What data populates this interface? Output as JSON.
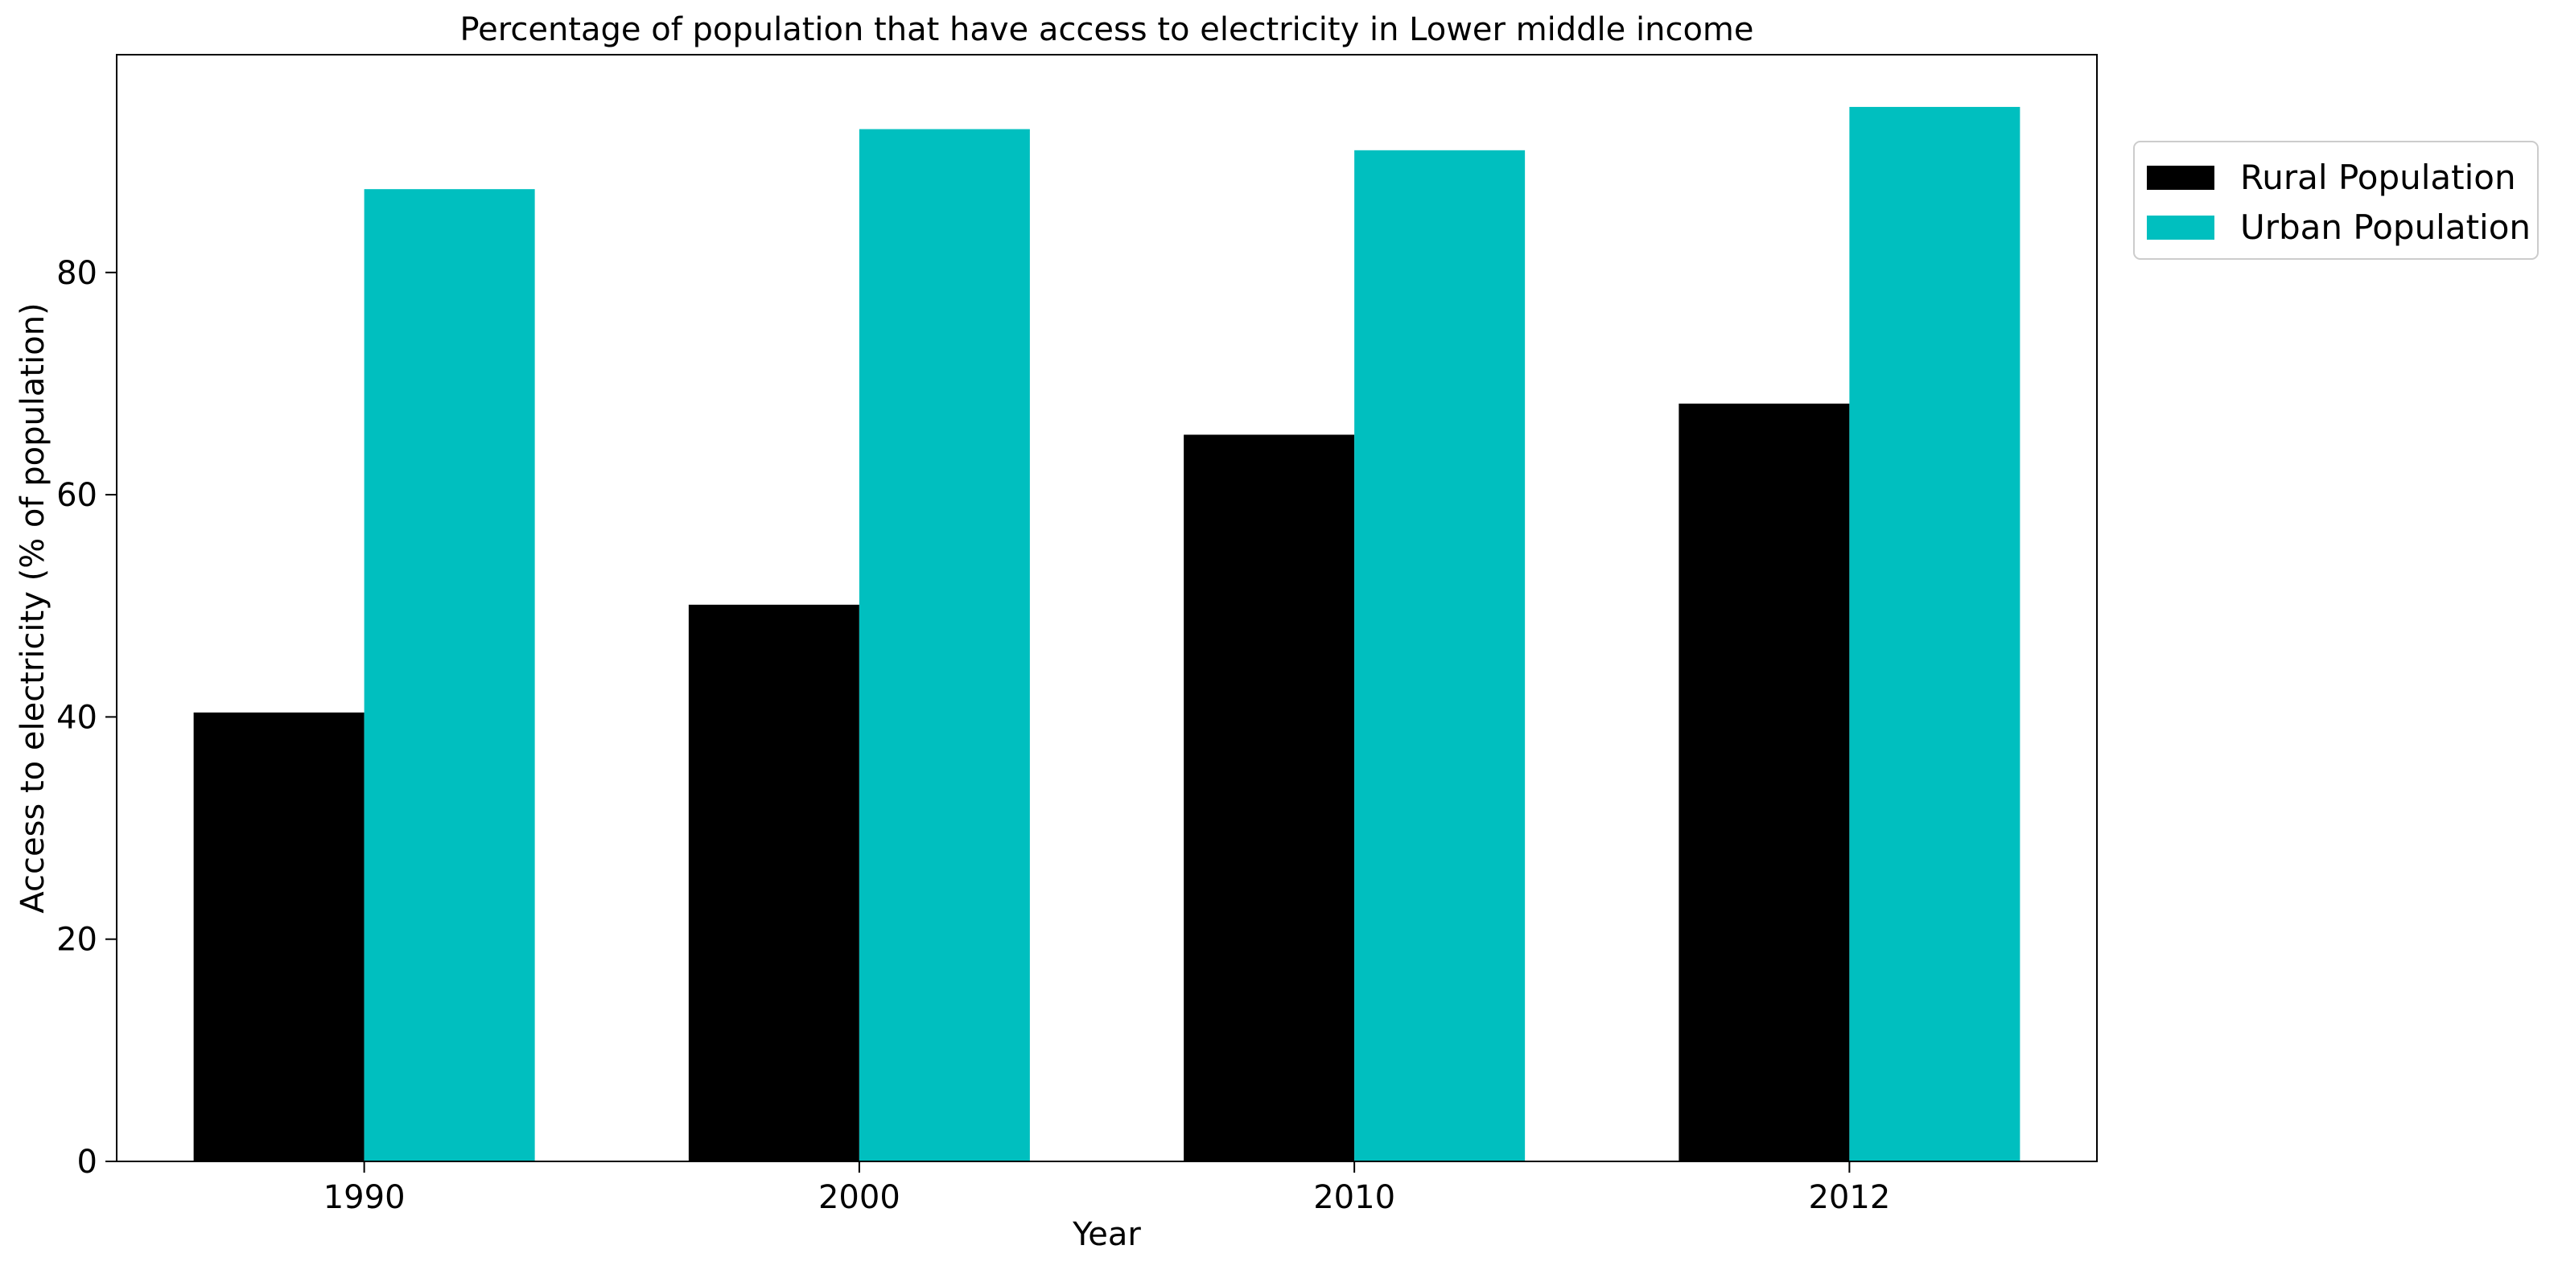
{
  "chart_data": {
    "type": "bar",
    "title": "Percentage of population that have access to electricity in Lower middle income",
    "xlabel": "Year",
    "ylabel": "Access to electricity (% of population)",
    "categories": [
      "1990",
      "2000",
      "2010",
      "2012"
    ],
    "series": [
      {
        "name": "Rural Population",
        "values": [
          40.4,
          50.1,
          65.4,
          68.2
        ],
        "color": "#000000"
      },
      {
        "name": "Urban Population",
        "values": [
          87.5,
          92.9,
          91.0,
          94.9
        ],
        "color": "#00bfbf"
      }
    ],
    "ylim": [
      0,
      99.6
    ],
    "yticks": [
      0,
      20,
      40,
      60,
      80
    ],
    "grid": false,
    "legend_position": "top-right, outside plot"
  }
}
